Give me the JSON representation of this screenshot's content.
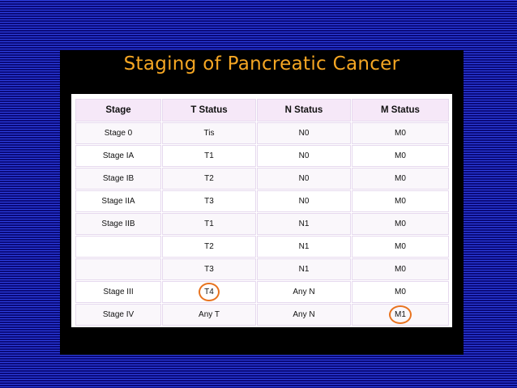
{
  "title": "Staging of Pancreatic Cancer",
  "colors": {
    "title": "#f5a623",
    "slide_background": "#000000",
    "page_background": "#1010a8",
    "circle_highlight": "#e8731f",
    "header_background": "#f6e8f8"
  },
  "table": {
    "headers": [
      "Stage",
      "T Status",
      "N Status",
      "M Status"
    ],
    "rows": [
      [
        "Stage 0",
        "Tis",
        "N0",
        "M0"
      ],
      [
        "Stage IA",
        "T1",
        "N0",
        "M0"
      ],
      [
        "Stage IB",
        "T2",
        "N0",
        "M0"
      ],
      [
        "Stage IIA",
        "T3",
        "N0",
        "M0"
      ],
      [
        "Stage IIB",
        "T1",
        "N1",
        "M0"
      ],
      [
        "",
        "T2",
        "N1",
        "M0"
      ],
      [
        "",
        "T3",
        "N1",
        "M0"
      ],
      [
        "Stage III",
        "T4",
        "Any N",
        "M0"
      ],
      [
        "Stage IV",
        "Any T",
        "Any N",
        "M1"
      ]
    ],
    "highlighted_cells": [
      "T4",
      "M1"
    ]
  }
}
